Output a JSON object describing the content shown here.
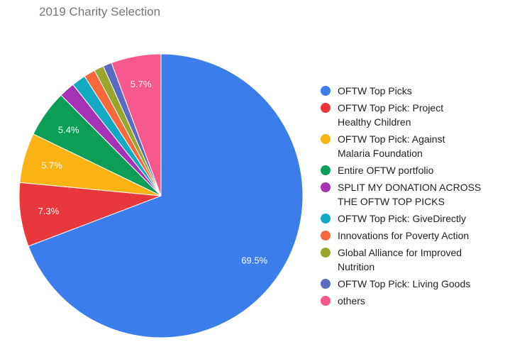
{
  "chart_data": {
    "type": "pie",
    "title": "2019 Charity Selection",
    "legend_position": "right",
    "slices": [
      {
        "name": "OFTW Top Picks",
        "value": 69.5,
        "label": "69.5%",
        "color": "#3b7deb"
      },
      {
        "name": "OFTW Top Pick: Project\nHealthy Children",
        "value": 7.3,
        "label": "7.3%",
        "color": "#e8383b"
      },
      {
        "name": "OFTW Top Pick: Against\nMalaria Foundation",
        "value": 5.7,
        "label": "5.7%",
        "color": "#fbb313"
      },
      {
        "name": "Entire OFTW portfolio",
        "value": 5.4,
        "label": "5.4%",
        "color": "#0c9d57"
      },
      {
        "name": "SPLIT MY DONATION ACROSS\nTHE OFTW TOP PICKS",
        "value": 1.8,
        "label": "",
        "color": "#a531b4"
      },
      {
        "name": "OFTW Top Pick: GiveDirectly",
        "value": 1.6,
        "label": "",
        "color": "#12aac2"
      },
      {
        "name": "Innovations for Poverty Action",
        "value": 1.3,
        "label": "",
        "color": "#f9673d"
      },
      {
        "name": "Global Alliance for Improved\nNutrition",
        "value": 1.1,
        "label": "",
        "color": "#9aa62a"
      },
      {
        "name": "OFTW Top Pick: Living Goods",
        "value": 1.0,
        "label": "",
        "color": "#5c6bc2"
      },
      {
        "name": "others",
        "value": 5.7,
        "label": "5.7%",
        "color": "#f7598f"
      }
    ]
  }
}
